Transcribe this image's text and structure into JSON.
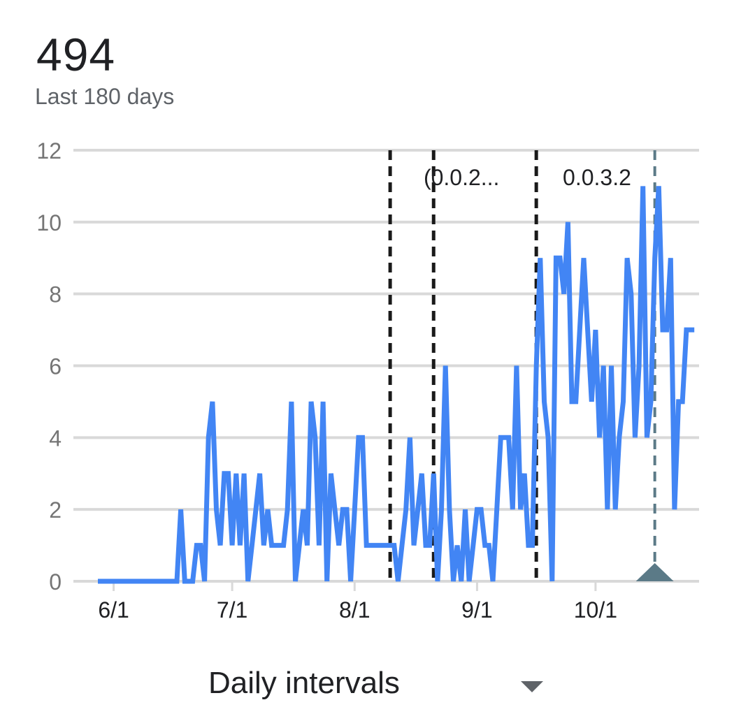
{
  "summary": {
    "total": "494",
    "period_label": "Last 180 days"
  },
  "interval_selector": {
    "label": "Daily intervals",
    "icon": "dropdown-caret-icon"
  },
  "colors": {
    "series": "#4285f4",
    "grid": "#d9d9d9",
    "marker": "#5b7a87",
    "release_line": "#1a1a1a"
  },
  "chart_data": {
    "type": "line",
    "x_tick_labels": [
      "6/1",
      "7/1",
      "8/1",
      "9/1",
      "10/1"
    ],
    "ylim": [
      0,
      12
    ],
    "y_ticks": [
      0,
      2,
      4,
      6,
      8,
      10,
      12
    ],
    "grid": true,
    "series": [
      {
        "values": [
          0,
          0,
          0,
          0,
          0,
          0,
          0,
          0,
          0,
          0,
          0,
          0,
          0,
          0,
          0,
          0,
          0,
          0,
          0,
          0,
          0,
          2,
          0,
          0,
          0,
          1,
          1,
          0,
          4,
          5,
          2,
          1,
          3,
          3,
          1,
          3,
          1,
          3,
          0,
          1,
          2,
          3,
          1,
          2,
          1,
          1,
          1,
          1,
          2,
          5,
          0,
          1,
          2,
          1,
          5,
          4,
          1,
          5,
          0,
          3,
          2,
          1,
          2,
          2,
          0,
          2,
          4,
          4,
          1,
          1,
          1,
          1,
          1,
          1,
          1,
          1,
          0,
          1,
          2,
          4,
          1,
          2,
          3,
          1,
          1,
          3,
          0,
          2,
          6,
          2,
          0,
          1,
          0,
          2,
          0,
          1,
          2,
          2,
          1,
          1,
          0,
          2,
          4,
          4,
          4,
          2,
          6,
          2,
          3,
          1,
          1,
          6,
          9,
          5,
          4,
          0,
          9,
          9,
          8,
          10,
          5,
          5,
          7,
          9,
          7,
          5,
          7,
          4,
          6,
          2,
          6,
          2,
          4,
          5,
          9,
          8,
          4,
          6,
          11,
          4,
          5,
          9,
          11,
          7,
          7,
          9,
          2,
          5,
          5,
          7,
          7,
          7
        ]
      }
    ],
    "x_start": "2019-05-28",
    "release_markers": [
      {
        "date": "2019-08-10",
        "label": ""
      },
      {
        "date": "2019-08-21",
        "label": ""
      },
      {
        "date": "2019-09-16",
        "label": "(0.0.2..."
      },
      {
        "date": "2019-10-16",
        "label": "0.0.3.2"
      }
    ]
  }
}
